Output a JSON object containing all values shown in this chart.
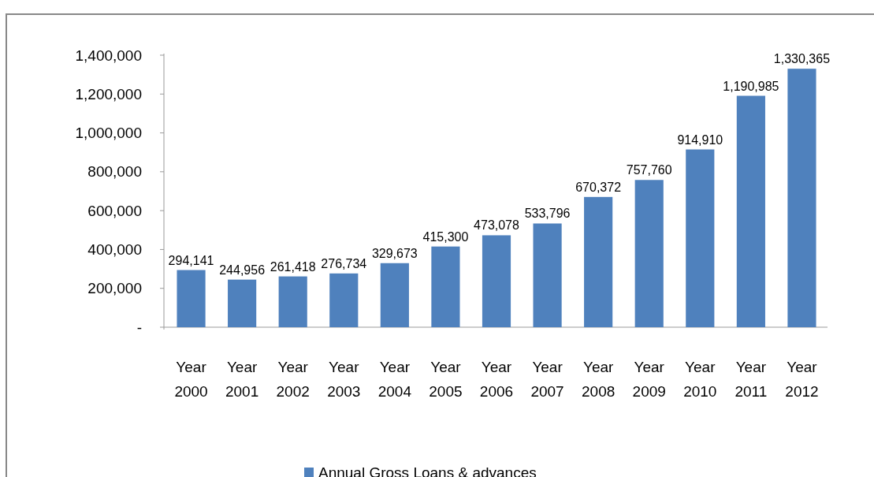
{
  "chart_data": {
    "type": "bar",
    "categories": [
      "Year 2000",
      "Year 2001",
      "Year 2002",
      "Year 2003",
      "Year 2004",
      "Year 2005",
      "Year 2006",
      "Year 2007",
      "Year 2008",
      "Year 2009",
      "Year 2010",
      "Year 2011",
      "Year 2012"
    ],
    "series": [
      {
        "name": "Annual Gross Loans & advances",
        "color": "#4f81bd",
        "values": [
          294141,
          244956,
          261418,
          276734,
          329673,
          415300,
          473078,
          533796,
          670372,
          757760,
          914910,
          1190985,
          1330365
        ]
      }
    ],
    "ylim": [
      0,
      1400000
    ],
    "yticks": [
      {
        "value": 0,
        "label": "-"
      },
      {
        "value": 200000,
        "label": "200,000"
      },
      {
        "value": 400000,
        "label": "400,000"
      },
      {
        "value": 600000,
        "label": "600,000"
      },
      {
        "value": 800000,
        "label": "800,000"
      },
      {
        "value": 1000000,
        "label": "1,000,000"
      },
      {
        "value": 1200000,
        "label": "1,200,000"
      },
      {
        "value": 1400000,
        "label": "1,400,000"
      }
    ],
    "value_labels": [
      "294,141",
      "244,956",
      "261,418",
      "276,734",
      "329,673",
      "415,300",
      "473,078",
      "533,796",
      "670,372",
      "757,760",
      "914,910",
      "1,190,985",
      "1,330,365"
    ],
    "legend": "bottom"
  }
}
